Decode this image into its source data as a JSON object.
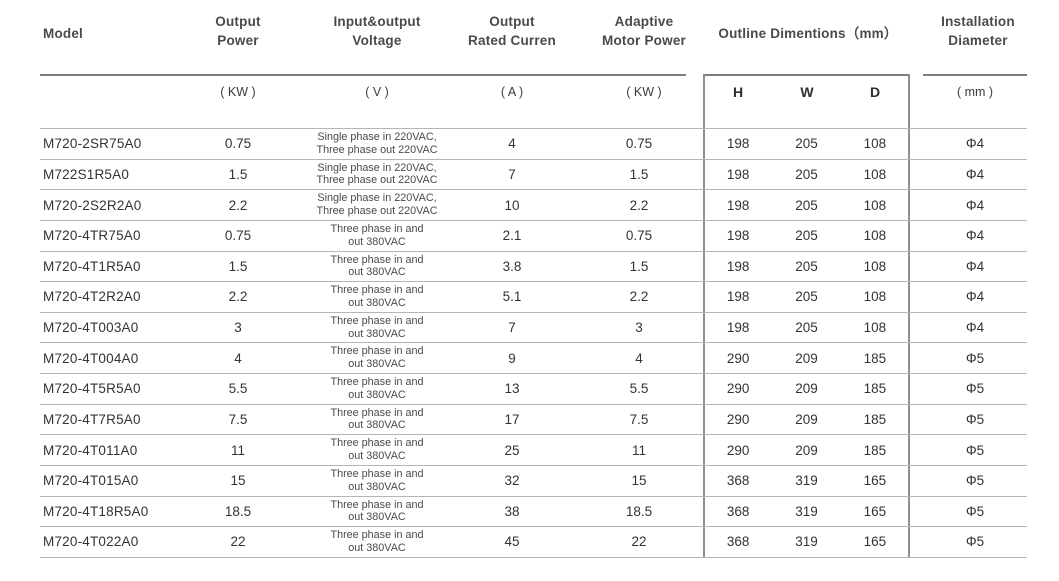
{
  "colors": {
    "background": "#ffffff",
    "text": "#333333",
    "header_text": "#4a4a4a",
    "rule_dark": "#7d7d7d",
    "rule_light": "#b5b5b5"
  },
  "table": {
    "columns": {
      "model": {
        "label": "Model"
      },
      "output_power": {
        "label": "Output\nPower",
        "unit": "( KW )"
      },
      "io_voltage": {
        "label": "Input&output\nVoltage",
        "unit": "( V )"
      },
      "rated_current": {
        "label": "Output\nRated Curren",
        "unit": "( A )"
      },
      "motor_power": {
        "label": "Adaptive\nMotor Power",
        "unit": "( KW )"
      },
      "outline": {
        "label": "Outline Dimentions（mm）",
        "sub": [
          "H",
          "W",
          "D"
        ]
      },
      "installation": {
        "label": "Installation\nDiameter",
        "unit": "( mm )"
      }
    },
    "rows": [
      {
        "model": "M720-2SR75A0",
        "power": "0.75",
        "voltage": "Single phase in  220VAC,\nThree phase out 220VAC",
        "current": "4",
        "motor": "0.75",
        "h": "198",
        "w": "205",
        "d": "108",
        "dia": "Φ4"
      },
      {
        "model": "M722S1R5A0",
        "power": "1.5",
        "voltage": "Single phase in  220VAC,\nThree phase out 220VAC",
        "current": "7",
        "motor": "1.5",
        "h": "198",
        "w": "205",
        "d": "108",
        "dia": "Φ4"
      },
      {
        "model": "M720-2S2R2A0",
        "power": "2.2",
        "voltage": "Single phase in  220VAC,\nThree phase out 220VAC",
        "current": "10",
        "motor": "2.2",
        "h": "198",
        "w": "205",
        "d": "108",
        "dia": "Φ4"
      },
      {
        "model": "M720-4TR75A0",
        "power": "0.75",
        "voltage": "Three phase in and\nout 380VAC",
        "current": "2.1",
        "motor": "0.75",
        "h": "198",
        "w": "205",
        "d": "108",
        "dia": "Φ4"
      },
      {
        "model": "M720-4T1R5A0",
        "power": "1.5",
        "voltage": "Three phase in and\nout 380VAC",
        "current": "3.8",
        "motor": "1.5",
        "h": "198",
        "w": "205",
        "d": "108",
        "dia": "Φ4"
      },
      {
        "model": "M720-4T2R2A0",
        "power": "2.2",
        "voltage": "Three phase in and\nout 380VAC",
        "current": "5.1",
        "motor": "2.2",
        "h": "198",
        "w": "205",
        "d": "108",
        "dia": "Φ4"
      },
      {
        "model": "M720-4T003A0",
        "power": "3",
        "voltage": "Three phase in and\nout 380VAC",
        "current": "7",
        "motor": "3",
        "h": "198",
        "w": "205",
        "d": "108",
        "dia": "Φ4"
      },
      {
        "model": "M720-4T004A0",
        "power": "4",
        "voltage": "Three phase in and\nout 380VAC",
        "current": "9",
        "motor": "4",
        "h": "290",
        "w": "209",
        "d": "185",
        "dia": "Φ5"
      },
      {
        "model": "M720-4T5R5A0",
        "power": "5.5",
        "voltage": "Three phase in and\nout 380VAC",
        "current": "13",
        "motor": "5.5",
        "h": "290",
        "w": "209",
        "d": "185",
        "dia": "Φ5"
      },
      {
        "model": "M720-4T7R5A0",
        "power": "7.5",
        "voltage": "Three phase in and\nout 380VAC",
        "current": "17",
        "motor": "7.5",
        "h": "290",
        "w": "209",
        "d": "185",
        "dia": "Φ5"
      },
      {
        "model": "M720-4T011A0",
        "power": "11",
        "voltage": "Three phase in and\nout 380VAC",
        "current": "25",
        "motor": "11",
        "h": "290",
        "w": "209",
        "d": "185",
        "dia": "Φ5"
      },
      {
        "model": "M720-4T015A0",
        "power": "15",
        "voltage": "Three phase in and\nout 380VAC",
        "current": "32",
        "motor": "15",
        "h": "368",
        "w": "319",
        "d": "165",
        "dia": "Φ5"
      },
      {
        "model": "M720-4T18R5A0",
        "power": "18.5",
        "voltage": "Three phase in and\nout 380VAC",
        "current": "38",
        "motor": "18.5",
        "h": "368",
        "w": "319",
        "d": "165",
        "dia": "Φ5"
      },
      {
        "model": "M720-4T022A0",
        "power": "22",
        "voltage": "Three phase in and\nout 380VAC",
        "current": "45",
        "motor": "22",
        "h": "368",
        "w": "319",
        "d": "165",
        "dia": "Φ5"
      }
    ]
  }
}
